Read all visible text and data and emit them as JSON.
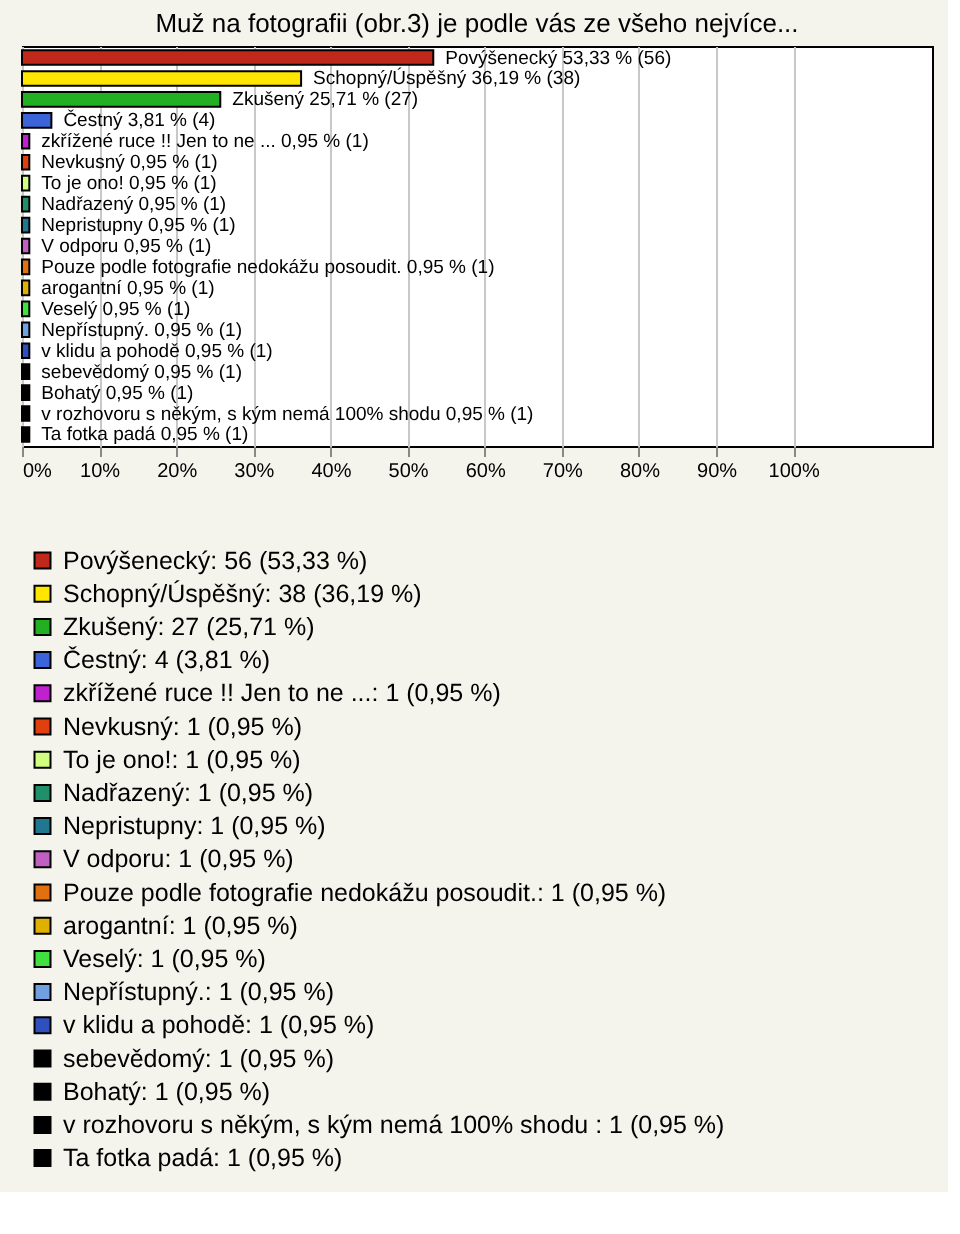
{
  "chart_data": {
    "type": "bar",
    "orientation": "horizontal",
    "title": "Muž na fotografii (obr.3) je podle vás ze všeho nejvíce...",
    "categories": [
      null,
      null,
      null,
      null,
      null,
      null,
      null,
      null,
      null,
      null,
      null,
      null,
      null,
      null,
      null,
      null,
      null,
      null,
      null
    ],
    "series": [
      {
        "name": "Povýšenecký: 56 (53,33 %)",
        "color": "#c0281c",
        "values": [
          53.33,
          null,
          null,
          null,
          null,
          null,
          null,
          null,
          null,
          null,
          null,
          null,
          null,
          null,
          null,
          null,
          null,
          null,
          null
        ],
        "value_labels": [
          "Povýšenecký 53,33 % (56)",
          null,
          null,
          null,
          null,
          null,
          null,
          null,
          null,
          null,
          null,
          null,
          null,
          null,
          null,
          null,
          null,
          null,
          null
        ]
      },
      {
        "name": "Schopný/Úspěšný: 38 (36,19 %)",
        "color": "#ffe600",
        "values": [
          null,
          36.19,
          null,
          null,
          null,
          null,
          null,
          null,
          null,
          null,
          null,
          null,
          null,
          null,
          null,
          null,
          null,
          null,
          null
        ],
        "value_labels": [
          null,
          "Schopný/Úspěšný 36,19 % (38)",
          null,
          null,
          null,
          null,
          null,
          null,
          null,
          null,
          null,
          null,
          null,
          null,
          null,
          null,
          null,
          null,
          null
        ]
      },
      {
        "name": "Zkušený: 27 (25,71 %)",
        "color": "#22b022",
        "values": [
          null,
          null,
          25.71,
          null,
          null,
          null,
          null,
          null,
          null,
          null,
          null,
          null,
          null,
          null,
          null,
          null,
          null,
          null,
          null
        ],
        "value_labels": [
          null,
          null,
          "Zkušený 25,71 % (27)",
          null,
          null,
          null,
          null,
          null,
          null,
          null,
          null,
          null,
          null,
          null,
          null,
          null,
          null,
          null,
          null
        ]
      },
      {
        "name": "Čestný: 4 (3,81 %)",
        "color": "#3b64d8",
        "values": [
          null,
          null,
          null,
          3.81,
          null,
          null,
          null,
          null,
          null,
          null,
          null,
          null,
          null,
          null,
          null,
          null,
          null,
          null,
          null
        ],
        "value_labels": [
          null,
          null,
          null,
          "Čestný 3,81 % (4)",
          null,
          null,
          null,
          null,
          null,
          null,
          null,
          null,
          null,
          null,
          null,
          null,
          null,
          null,
          null
        ]
      },
      {
        "name": "zkřížené ruce !!  Jen to ne ...: 1 (0,95 %)",
        "color": "#c020d0",
        "values": [
          null,
          null,
          null,
          null,
          0.95,
          null,
          null,
          null,
          null,
          null,
          null,
          null,
          null,
          null,
          null,
          null,
          null,
          null,
          null
        ],
        "value_labels": [
          null,
          null,
          null,
          null,
          "zkřížené ruce !!  Jen to ne ... 0,95 % (1)",
          null,
          null,
          null,
          null,
          null,
          null,
          null,
          null,
          null,
          null,
          null,
          null,
          null,
          null
        ]
      },
      {
        "name": "Nevkusný: 1 (0,95 %)",
        "color": "#e04010",
        "values": [
          null,
          null,
          null,
          null,
          null,
          0.95,
          null,
          null,
          null,
          null,
          null,
          null,
          null,
          null,
          null,
          null,
          null,
          null,
          null
        ],
        "value_labels": [
          null,
          null,
          null,
          null,
          null,
          "Nevkusný 0,95 % (1)",
          null,
          null,
          null,
          null,
          null,
          null,
          null,
          null,
          null,
          null,
          null,
          null,
          null
        ]
      },
      {
        "name": "To je ono!: 1 (0,95 %)",
        "color": "#d0ff80",
        "values": [
          null,
          null,
          null,
          null,
          null,
          null,
          0.95,
          null,
          null,
          null,
          null,
          null,
          null,
          null,
          null,
          null,
          null,
          null,
          null
        ],
        "value_labels": [
          null,
          null,
          null,
          null,
          null,
          null,
          "To je ono! 0,95 % (1)",
          null,
          null,
          null,
          null,
          null,
          null,
          null,
          null,
          null,
          null,
          null,
          null
        ]
      },
      {
        "name": "Nadřazený: 1 (0,95 %)",
        "color": "#20906a",
        "values": [
          null,
          null,
          null,
          null,
          null,
          null,
          null,
          0.95,
          null,
          null,
          null,
          null,
          null,
          null,
          null,
          null,
          null,
          null,
          null
        ],
        "value_labels": [
          null,
          null,
          null,
          null,
          null,
          null,
          null,
          "Nadřazený 0,95 % (1)",
          null,
          null,
          null,
          null,
          null,
          null,
          null,
          null,
          null,
          null,
          null
        ]
      },
      {
        "name": "Nepristupny: 1 (0,95 %)",
        "color": "#207890",
        "values": [
          null,
          null,
          null,
          null,
          null,
          null,
          null,
          null,
          0.95,
          null,
          null,
          null,
          null,
          null,
          null,
          null,
          null,
          null,
          null
        ],
        "value_labels": [
          null,
          null,
          null,
          null,
          null,
          null,
          null,
          null,
          "Nepristupny 0,95 % (1)",
          null,
          null,
          null,
          null,
          null,
          null,
          null,
          null,
          null,
          null
        ]
      },
      {
        "name": "V odporu: 1 (0,95 %)",
        "color": "#c060c0",
        "values": [
          null,
          null,
          null,
          null,
          null,
          null,
          null,
          null,
          null,
          0.95,
          null,
          null,
          null,
          null,
          null,
          null,
          null,
          null,
          null
        ],
        "value_labels": [
          null,
          null,
          null,
          null,
          null,
          null,
          null,
          null,
          null,
          "V odporu 0,95 % (1)",
          null,
          null,
          null,
          null,
          null,
          null,
          null,
          null,
          null
        ]
      },
      {
        "name": "Pouze podle fotografie nedokážu posoudit.: 1 (0,95 %)",
        "color": "#e07010",
        "values": [
          null,
          null,
          null,
          null,
          null,
          null,
          null,
          null,
          null,
          null,
          0.95,
          null,
          null,
          null,
          null,
          null,
          null,
          null,
          null
        ],
        "value_labels": [
          null,
          null,
          null,
          null,
          null,
          null,
          null,
          null,
          null,
          null,
          "Pouze podle fotografie nedokážu posoudit. 0,95 % (1)",
          null,
          null,
          null,
          null,
          null,
          null,
          null,
          null
        ]
      },
      {
        "name": "arogantní: 1 (0,95 %)",
        "color": "#e0b000",
        "values": [
          null,
          null,
          null,
          null,
          null,
          null,
          null,
          null,
          null,
          null,
          null,
          0.95,
          null,
          null,
          null,
          null,
          null,
          null,
          null
        ],
        "value_labels": [
          null,
          null,
          null,
          null,
          null,
          null,
          null,
          null,
          null,
          null,
          null,
          "arogantní 0,95 % (1)",
          null,
          null,
          null,
          null,
          null,
          null,
          null
        ]
      },
      {
        "name": "Veselý: 1 (0,95 %)",
        "color": "#40e040",
        "values": [
          null,
          null,
          null,
          null,
          null,
          null,
          null,
          null,
          null,
          null,
          null,
          null,
          0.95,
          null,
          null,
          null,
          null,
          null,
          null
        ],
        "value_labels": [
          null,
          null,
          null,
          null,
          null,
          null,
          null,
          null,
          null,
          null,
          null,
          null,
          "Veselý 0,95 % (1)",
          null,
          null,
          null,
          null,
          null,
          null
        ]
      },
      {
        "name": "Nepřístupný.: 1 (0,95 %)",
        "color": "#70a0e0",
        "values": [
          null,
          null,
          null,
          null,
          null,
          null,
          null,
          null,
          null,
          null,
          null,
          null,
          null,
          0.95,
          null,
          null,
          null,
          null,
          null
        ],
        "value_labels": [
          null,
          null,
          null,
          null,
          null,
          null,
          null,
          null,
          null,
          null,
          null,
          null,
          null,
          "Nepřístupný. 0,95 % (1)",
          null,
          null,
          null,
          null,
          null
        ]
      },
      {
        "name": "v klidu a pohodě: 1 (0,95 %)",
        "color": "#3050c0",
        "values": [
          null,
          null,
          null,
          null,
          null,
          null,
          null,
          null,
          null,
          null,
          null,
          null,
          null,
          null,
          0.95,
          null,
          null,
          null,
          null
        ],
        "value_labels": [
          null,
          null,
          null,
          null,
          null,
          null,
          null,
          null,
          null,
          null,
          null,
          null,
          null,
          null,
          "v klidu a pohodě 0,95 % (1)",
          null,
          null,
          null,
          null
        ]
      },
      {
        "name": "sebevědomý: 1 (0,95 %)",
        "color": "#000000",
        "values": [
          null,
          null,
          null,
          null,
          null,
          null,
          null,
          null,
          null,
          null,
          null,
          null,
          null,
          null,
          null,
          0.95,
          null,
          null,
          null
        ],
        "value_labels": [
          null,
          null,
          null,
          null,
          null,
          null,
          null,
          null,
          null,
          null,
          null,
          null,
          null,
          null,
          null,
          "sebevědomý 0,95 % (1)",
          null,
          null,
          null
        ]
      },
      {
        "name": "Bohatý: 1 (0,95 %)",
        "color": "#000000",
        "values": [
          null,
          null,
          null,
          null,
          null,
          null,
          null,
          null,
          null,
          null,
          null,
          null,
          null,
          null,
          null,
          null,
          0.95,
          null,
          null
        ],
        "value_labels": [
          null,
          null,
          null,
          null,
          null,
          null,
          null,
          null,
          null,
          null,
          null,
          null,
          null,
          null,
          null,
          null,
          "Bohatý 0,95 % (1)",
          null,
          null
        ]
      },
      {
        "name": "v rozhovoru s někým, s kým nemá 100% shodu : 1 (0,95 %)",
        "color": "#000000",
        "values": [
          null,
          null,
          null,
          null,
          null,
          null,
          null,
          null,
          null,
          null,
          null,
          null,
          null,
          null,
          null,
          null,
          null,
          0.95,
          null
        ],
        "value_labels": [
          null,
          null,
          null,
          null,
          null,
          null,
          null,
          null,
          null,
          null,
          null,
          null,
          null,
          null,
          null,
          null,
          null,
          "v rozhovoru s někým, s kým nemá 100% shodu  0,95 % (1)",
          null
        ]
      },
      {
        "name": "Ta fotka padá: 1 (0,95 %)",
        "color": "#000000",
        "values": [
          null,
          null,
          null,
          null,
          null,
          null,
          null,
          null,
          null,
          null,
          null,
          null,
          null,
          null,
          null,
          null,
          null,
          null,
          0.95
        ],
        "value_labels": [
          null,
          null,
          null,
          null,
          null,
          null,
          null,
          null,
          null,
          null,
          null,
          null,
          null,
          null,
          null,
          null,
          null,
          null,
          "Ta fotka padá 0,95 % (1)"
        ]
      }
    ],
    "legend": "bottom",
    "xlim": [
      0,
      118
    ],
    "xticks": [
      {
        "value": 0,
        "label": "0%"
      },
      {
        "value": 10,
        "label": "10%"
      },
      {
        "value": 20,
        "label": "20%"
      },
      {
        "value": 30,
        "label": "30%"
      },
      {
        "value": 40,
        "label": "40%"
      },
      {
        "value": 50,
        "label": "50%"
      },
      {
        "value": 60,
        "label": "60%"
      },
      {
        "value": 70,
        "label": "70%"
      },
      {
        "value": 80,
        "label": "80%"
      },
      {
        "value": 90,
        "label": "90%"
      },
      {
        "value": 100,
        "label": "100%"
      }
    ],
    "grid": "x",
    "tick_labels": "x"
  }
}
